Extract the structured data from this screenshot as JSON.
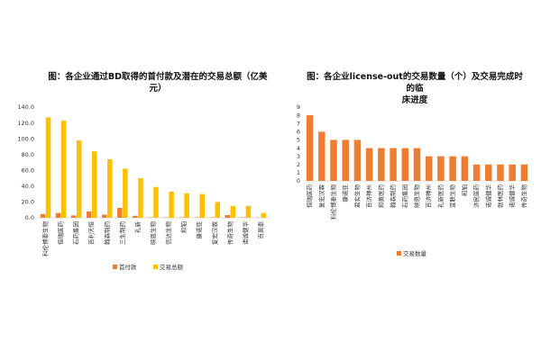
{
  "chart_data": [
    {
      "type": "bar",
      "title": "图：各企业通过BD取得的首付款及潜在的交易总额（亿美元）",
      "categories": [
        "科伦博泰生物",
        "恒瑞医药",
        "石药集团",
        "百利天恒",
        "翰森制药",
        "三生制药",
        "礼新",
        "映恩生物",
        "信达生物",
        "和铂",
        "康诺亚",
        "复宏汉霖",
        "传奇生物",
        "诺诚健华",
        "百奥泰"
      ],
      "series": [
        {
          "name": "首付款",
          "color": "#ED7D31",
          "values": [
            4.7,
            6.0,
            3.0,
            8.0,
            4.0,
            12.5,
            2.5,
            0.5,
            0.5,
            0.5,
            0.5,
            0.5,
            3.5,
            0.5,
            0.3
          ]
        },
        {
          "name": "交易总额",
          "color": "#FFC000",
          "values": [
            127,
            123,
            98,
            84,
            74,
            62,
            50,
            39,
            33,
            31,
            30,
            20,
            15,
            15,
            6
          ]
        }
      ],
      "ylim": [
        0,
        140
      ],
      "yticks": [
        "0.0",
        "20.0",
        "40.0",
        "60.0",
        "80.0",
        "100.0",
        "120.0",
        "140.0"
      ],
      "legend": [
        "首付款",
        "交易总额"
      ],
      "legend_position": "bottom",
      "grid": false
    },
    {
      "type": "bar",
      "title": "图：各企业license-out的交易数量（个）及交易完成时的临\n床进度",
      "categories": [
        "恒瑞医药",
        "复宏汉霖",
        "科伦博泰生物",
        "康诺亚",
        "君实生物",
        "百济神州",
        "和黄医药",
        "翰森制药",
        "石药集团",
        "映恩生物",
        "百济神州",
        "礼新医药",
        "宜联生物",
        "和铂",
        "济民医药",
        "诺诚健华",
        "勃林医药",
        "诺诚健华",
        "传奇生物"
      ],
      "series": [
        {
          "name": "交易数量",
          "color": "#ED7D31",
          "values": [
            8,
            6,
            5,
            5,
            5,
            4,
            4,
            4,
            4,
            4,
            3,
            3,
            3,
            3,
            2,
            2,
            2,
            2,
            2
          ]
        }
      ],
      "ylim": [
        0,
        9
      ],
      "yticks": [
        "0",
        "1",
        "2",
        "3",
        "4",
        "5",
        "6",
        "7",
        "8",
        "9"
      ],
      "legend": [
        "交易数量"
      ],
      "legend_position": "bottom",
      "grid": false
    }
  ]
}
